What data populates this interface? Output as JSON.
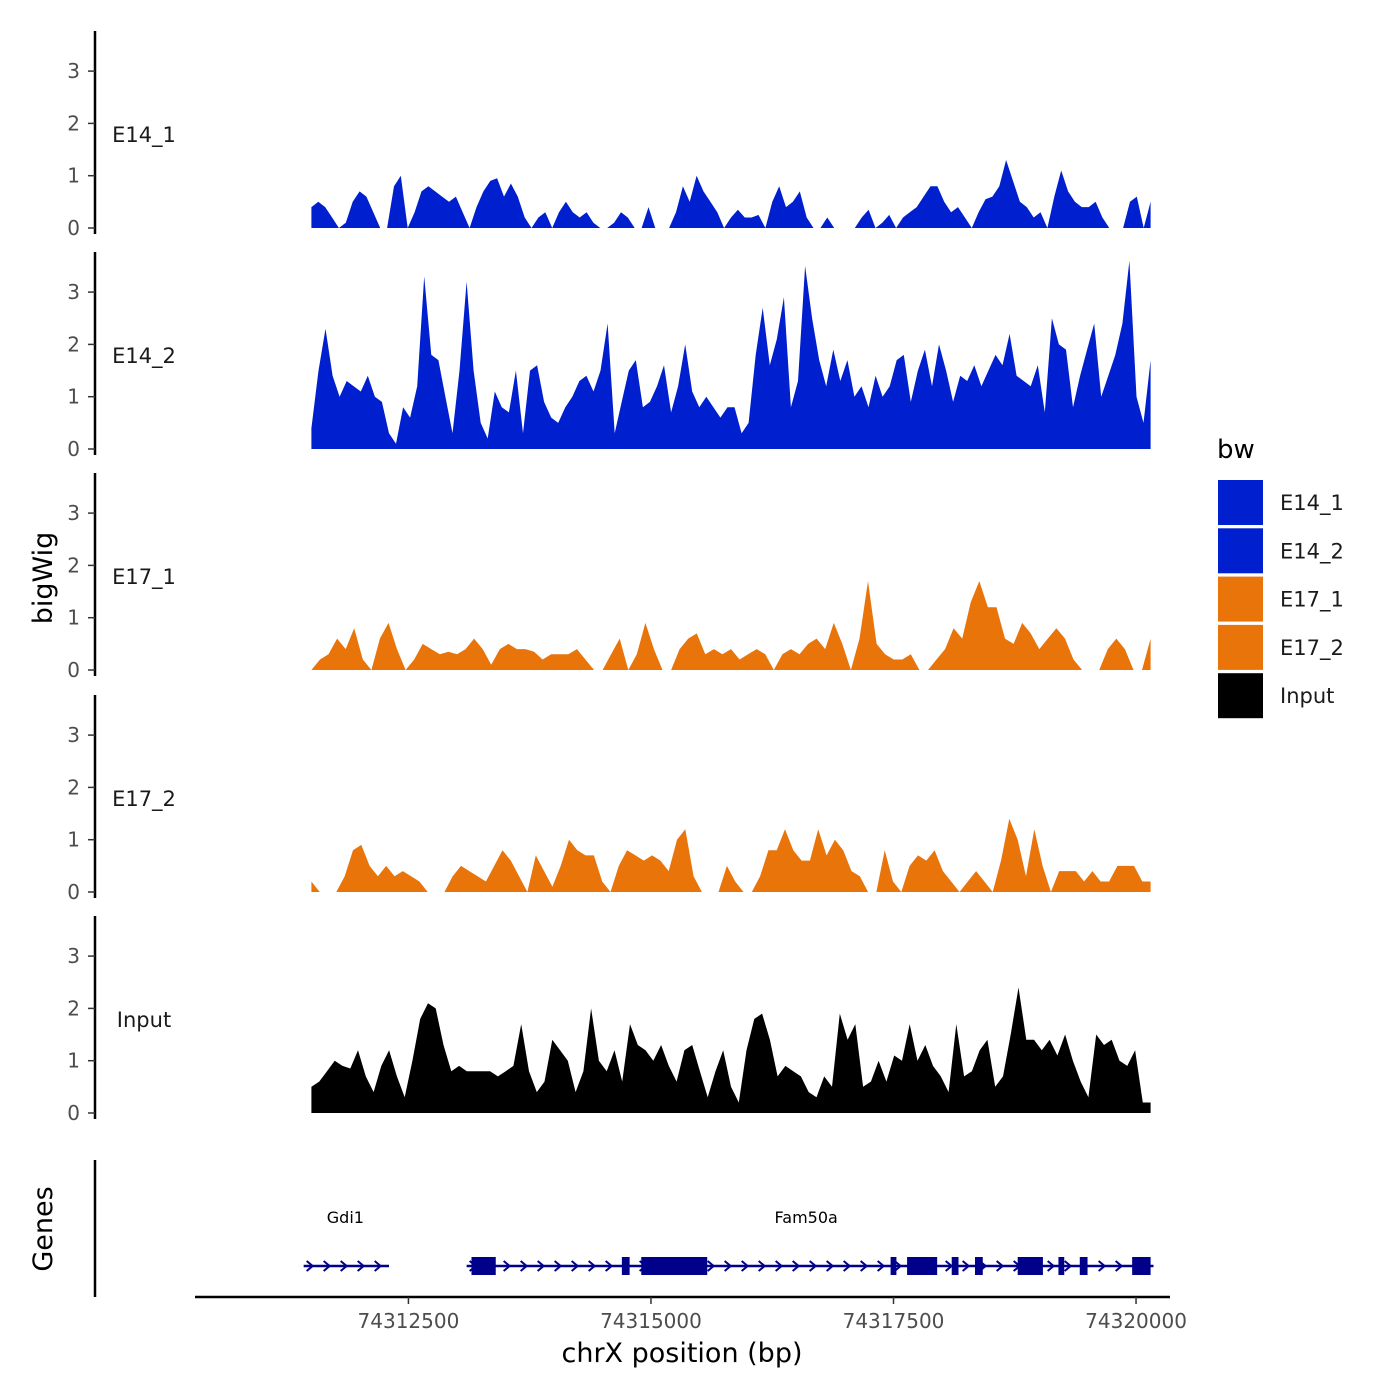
{
  "chart_data": {
    "type": "area",
    "ylabel": "bigWig",
    "xlabel": "chrX position (bp)",
    "ylim": [
      0,
      3.7
    ],
    "y_ticks": [
      "0",
      "1",
      "2",
      "3"
    ],
    "x_range": [
      74310300,
      74320350
    ],
    "x_ticks": [
      {
        "value": 74312500,
        "label": "74312500"
      },
      {
        "value": 74315000,
        "label": "74315000"
      },
      {
        "value": 74317500,
        "label": "74317500"
      },
      {
        "value": 74320000,
        "label": "74320000"
      }
    ],
    "legend": {
      "title": "bw",
      "entries": [
        {
          "label": "E14_1",
          "color": "#0020D0"
        },
        {
          "label": "E14_2",
          "color": "#0020D0"
        },
        {
          "label": "E17_1",
          "color": "#E8740A"
        },
        {
          "label": "E17_2",
          "color": "#E8740A"
        },
        {
          "label": "Input",
          "color": "#000000"
        }
      ]
    },
    "series": [
      {
        "name": "E14_1",
        "color": "#0020D0",
        "x_start": 74311500,
        "x_end": 74320150,
        "values": [
          0.4,
          0.5,
          0.4,
          0.2,
          0,
          0.1,
          0.5,
          0.7,
          0.6,
          0.3,
          0,
          0,
          0.8,
          1.0,
          0,
          0.3,
          0.7,
          0.8,
          0.7,
          0.6,
          0.5,
          0.6,
          0.3,
          0,
          0.4,
          0.7,
          0.9,
          0.95,
          0.6,
          0.85,
          0.6,
          0.2,
          0,
          0.2,
          0.3,
          0,
          0.3,
          0.5,
          0.3,
          0.2,
          0.3,
          0.1,
          0,
          0,
          0.1,
          0.3,
          0.2,
          0,
          0,
          0.4,
          0,
          0,
          0,
          0.3,
          0.8,
          0.5,
          1.0,
          0.7,
          0.5,
          0.3,
          0,
          0.2,
          0.35,
          0.2,
          0.2,
          0.25,
          0,
          0.5,
          0.8,
          0.4,
          0.5,
          0.7,
          0.2,
          0,
          0,
          0.2,
          0,
          0,
          0,
          0,
          0.2,
          0.35,
          0,
          0.1,
          0.25,
          0,
          0.2,
          0.3,
          0.4,
          0.6,
          0.8,
          0.8,
          0.5,
          0.3,
          0.4,
          0.2,
          0,
          0.3,
          0.55,
          0.6,
          0.8,
          1.3,
          0.9,
          0.5,
          0.4,
          0.2,
          0.3,
          0,
          0.6,
          1.1,
          0.7,
          0.5,
          0.4,
          0.4,
          0.5,
          0.2,
          0,
          0,
          0,
          0.5,
          0.6,
          0,
          0.5
        ]
      },
      {
        "name": "E14_2",
        "color": "#0020D0",
        "x_start": 74311500,
        "x_end": 74320150,
        "values": [
          0.4,
          1.5,
          2.3,
          1.4,
          1.0,
          1.3,
          1.2,
          1.1,
          1.4,
          1.0,
          0.9,
          0.3,
          0.1,
          0.8,
          0.6,
          1.2,
          3.3,
          1.8,
          1.7,
          1.0,
          0.3,
          1.5,
          3.2,
          1.5,
          0.5,
          0.2,
          1.1,
          0.8,
          0.7,
          1.5,
          0.3,
          1.5,
          1.6,
          0.9,
          0.6,
          0.5,
          0.8,
          1.0,
          1.3,
          1.4,
          1.1,
          1.5,
          2.4,
          0.3,
          0.9,
          1.5,
          1.7,
          0.8,
          0.9,
          1.2,
          1.6,
          0.7,
          1.2,
          2.0,
          1.1,
          0.8,
          1.0,
          0.8,
          0.6,
          0.8,
          0.8,
          0.3,
          0.5,
          1.8,
          2.7,
          1.6,
          2.1,
          2.9,
          0.8,
          1.3,
          3.5,
          2.5,
          1.7,
          1.2,
          1.9,
          1.3,
          1.7,
          1.0,
          1.2,
          0.8,
          1.4,
          1.0,
          1.2,
          1.7,
          1.8,
          0.9,
          1.5,
          1.9,
          1.2,
          2.0,
          1.5,
          0.9,
          1.4,
          1.3,
          1.6,
          1.2,
          1.5,
          1.8,
          1.6,
          2.2,
          1.4,
          1.3,
          1.2,
          1.6,
          0.7,
          2.5,
          2.0,
          1.9,
          0.8,
          1.4,
          1.9,
          2.4,
          1.0,
          1.4,
          1.8,
          2.4,
          3.6,
          1.0,
          0.5,
          1.7
        ]
      },
      {
        "name": "E17_1",
        "color": "#E8740A",
        "x_start": 74311500,
        "x_end": 74320150,
        "values": [
          0,
          0.2,
          0.3,
          0.6,
          0.4,
          0.8,
          0.2,
          0,
          0.6,
          0.9,
          0.4,
          0,
          0.2,
          0.5,
          0.4,
          0.3,
          0.35,
          0.3,
          0.4,
          0.6,
          0.4,
          0.1,
          0.4,
          0.5,
          0.4,
          0.4,
          0.35,
          0.2,
          0.3,
          0.3,
          0.3,
          0.4,
          0.2,
          0,
          0,
          0.3,
          0.6,
          0,
          0.3,
          0.9,
          0.4,
          0,
          0,
          0.4,
          0.6,
          0.7,
          0.3,
          0.4,
          0.3,
          0.4,
          0.2,
          0.3,
          0.4,
          0.3,
          0,
          0.3,
          0.4,
          0.3,
          0.5,
          0.6,
          0.4,
          0.9,
          0.5,
          0,
          0.6,
          1.7,
          0.5,
          0.3,
          0.2,
          0.2,
          0.3,
          0,
          0,
          0.2,
          0.4,
          0.8,
          0.6,
          1.3,
          1.7,
          1.2,
          1.2,
          0.6,
          0.5,
          0.9,
          0.7,
          0.4,
          0.6,
          0.8,
          0.6,
          0.2,
          0,
          0,
          0,
          0.4,
          0.6,
          0.4,
          0,
          0,
          0.6
        ]
      },
      {
        "name": "E17_2",
        "color": "#E8740A",
        "x_start": 74311500,
        "x_end": 74320150,
        "values": [
          0.2,
          0,
          0,
          0,
          0.3,
          0.8,
          0.9,
          0.5,
          0.3,
          0.5,
          0.3,
          0.4,
          0.3,
          0.2,
          0,
          0,
          0,
          0.3,
          0.5,
          0.4,
          0.3,
          0.2,
          0.5,
          0.8,
          0.6,
          0.3,
          0,
          0.7,
          0.4,
          0.1,
          0.5,
          1.0,
          0.8,
          0.7,
          0.7,
          0.2,
          0,
          0.5,
          0.8,
          0.7,
          0.6,
          0.7,
          0.6,
          0.4,
          1.0,
          1.2,
          0.3,
          0,
          0,
          0,
          0.5,
          0.2,
          0,
          0,
          0.3,
          0.8,
          0.8,
          1.2,
          0.8,
          0.6,
          0.6,
          1.2,
          0.7,
          1.0,
          0.8,
          0.4,
          0.3,
          0,
          0,
          0.8,
          0.2,
          0,
          0.5,
          0.7,
          0.6,
          0.8,
          0.4,
          0.2,
          0,
          0.2,
          0.4,
          0.2,
          0,
          0.6,
          1.4,
          1.0,
          0.3,
          1.2,
          0.5,
          0,
          0.4,
          0.4,
          0.4,
          0.2,
          0.4,
          0.2,
          0.2,
          0.5,
          0.5,
          0.5,
          0.2,
          0.2
        ]
      },
      {
        "name": "Input",
        "color": "#000000",
        "x_start": 74311500,
        "x_end": 74320150,
        "values": [
          0.5,
          0.6,
          0.8,
          1.0,
          0.9,
          0.85,
          1.2,
          0.7,
          0.4,
          0.9,
          1.2,
          0.7,
          0.3,
          1.0,
          1.8,
          2.1,
          2.0,
          1.3,
          0.8,
          0.9,
          0.8,
          0.8,
          0.8,
          0.8,
          0.7,
          0.8,
          0.9,
          1.7,
          0.8,
          0.4,
          0.6,
          1.4,
          1.2,
          1.0,
          0.4,
          0.8,
          2.0,
          1.0,
          0.8,
          1.2,
          0.6,
          1.7,
          1.3,
          1.2,
          1.0,
          1.3,
          0.9,
          0.6,
          1.2,
          1.3,
          0.8,
          0.3,
          0.8,
          1.2,
          0.5,
          0.2,
          1.2,
          1.8,
          1.9,
          1.4,
          0.7,
          0.9,
          0.8,
          0.7,
          0.4,
          0.3,
          0.7,
          0.5,
          1.9,
          1.4,
          1.7,
          0.5,
          0.6,
          1.0,
          0.6,
          1.1,
          1.0,
          1.7,
          1.0,
          1.3,
          0.9,
          0.7,
          0.4,
          1.7,
          0.7,
          0.8,
          1.2,
          1.4,
          0.5,
          0.7,
          1.5,
          2.4,
          1.4,
          1.4,
          1.2,
          1.4,
          1.1,
          1.5,
          1.0,
          0.6,
          0.3,
          1.5,
          1.3,
          1.4,
          1.0,
          0.9,
          1.2,
          0.2,
          0.2
        ]
      }
    ],
    "genes": [
      {
        "name": "Gdi1",
        "label_x": 74311850,
        "start": 74311420,
        "end": 74312300,
        "strand": "+",
        "exons": []
      },
      {
        "name": "Fam50a",
        "label_x": 74316600,
        "start": 74313100,
        "end": 74320180,
        "strand": "+",
        "exons": [
          [
            74313150,
            74313400
          ],
          [
            74314700,
            74314780
          ],
          [
            74314900,
            74315580
          ],
          [
            74317470,
            74317530
          ],
          [
            74317640,
            74317950
          ],
          [
            74318100,
            74318170
          ],
          [
            74318340,
            74318420
          ],
          [
            74318780,
            74319040
          ],
          [
            74319200,
            74319260
          ],
          [
            74319420,
            74319500
          ],
          [
            74319960,
            74320150
          ]
        ]
      }
    ],
    "genes_label": "Genes"
  }
}
